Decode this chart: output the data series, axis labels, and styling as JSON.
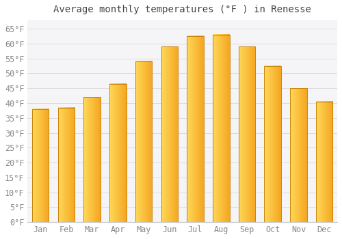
{
  "title": "Average monthly temperatures (°F ) in Renesse",
  "months": [
    "Jan",
    "Feb",
    "Mar",
    "Apr",
    "May",
    "Jun",
    "Jul",
    "Aug",
    "Sep",
    "Oct",
    "Nov",
    "Dec"
  ],
  "values": [
    38,
    38.5,
    42,
    46.5,
    54,
    59,
    62.5,
    63,
    59,
    52.5,
    45,
    40.5
  ],
  "bar_color_left": "#FFD966",
  "bar_color_right": "#F5A623",
  "bar_edge_color": "#C8820A",
  "background_color": "#FFFFFF",
  "plot_bg_color": "#F5F5F8",
  "grid_color": "#DCDCE0",
  "ylim": [
    0,
    68
  ],
  "yticks": [
    0,
    5,
    10,
    15,
    20,
    25,
    30,
    35,
    40,
    45,
    50,
    55,
    60,
    65
  ],
  "title_fontsize": 10,
  "tick_fontsize": 8.5,
  "tick_font_color": "#888888",
  "title_font_color": "#444444",
  "bar_width": 0.65
}
